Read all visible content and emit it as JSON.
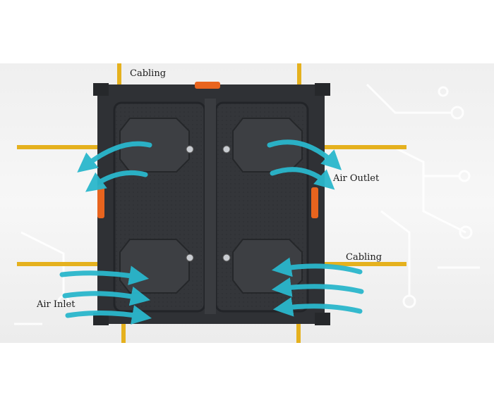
{
  "labels": {
    "cabling_top": "Cabling",
    "air_outlet": "Air Outlet",
    "cabling_right": "Cabling",
    "air_inlet": "Air Inlet"
  },
  "colors": {
    "cable": "#e5b11e",
    "airflow": "#2ab7cc",
    "cabinet": "#2f3135",
    "handle": "#e8641e",
    "circuit": "#ffffff"
  },
  "icons": {
    "cabinet": "led-cabinet-rear-icon",
    "arrow": "airflow-arrow-icon"
  }
}
